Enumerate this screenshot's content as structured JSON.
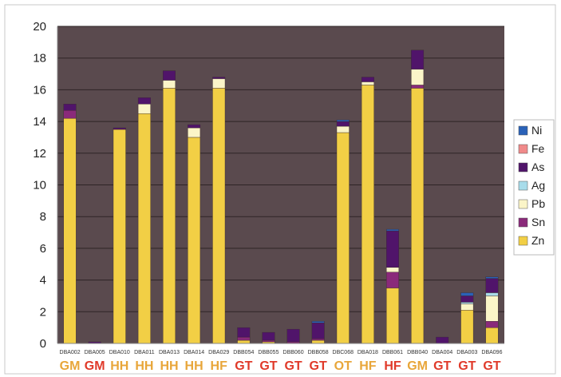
{
  "chart_data": {
    "type": "bar",
    "stacked": true,
    "title": "",
    "xlabel": "",
    "ylabel": "",
    "ylim": [
      0,
      20
    ],
    "yticks": [
      0,
      2,
      4,
      6,
      8,
      10,
      12,
      14,
      16,
      18,
      20
    ],
    "grid": true,
    "legend_position": "right",
    "plot_background": "#5a4a4e",
    "categories": [
      "DBA002",
      "DBA005",
      "DBA010",
      "DBA011",
      "DBA013",
      "DBA014",
      "DBA029",
      "DBB054",
      "DBB055",
      "DBB060",
      "DBB058",
      "DBC068",
      "DBA018",
      "DBB061",
      "DBB040",
      "DBA004",
      "DBA003",
      "DBA096"
    ],
    "groups": [
      "GM",
      "GM",
      "HH",
      "HH",
      "HH",
      "HH",
      "HF",
      "GT",
      "GT",
      "GT",
      "GT",
      "OT",
      "HF",
      "HF",
      "GM",
      "GT",
      "GT",
      "GT"
    ],
    "group_colors": [
      "#e8a63a",
      "#e03a2a",
      "#e8a63a",
      "#e8a63a",
      "#e8a63a",
      "#e8a63a",
      "#e8a63a",
      "#e03a2a",
      "#e03a2a",
      "#e03a2a",
      "#e03a2a",
      "#e8a63a",
      "#e8a63a",
      "#e03a2a",
      "#e8a63a",
      "#e03a2a",
      "#e03a2a",
      "#e03a2a"
    ],
    "series": [
      {
        "name": "Zn",
        "color": "#f2cf45",
        "values": [
          14.2,
          0.0,
          13.5,
          14.5,
          16.1,
          13.0,
          16.1,
          0.2,
          0.1,
          0.0,
          0.2,
          13.3,
          16.3,
          3.5,
          16.1,
          0.0,
          2.1,
          1.0
        ]
      },
      {
        "name": "Sn",
        "color": "#8a2a7a",
        "values": [
          0.5,
          0.0,
          0.0,
          0.0,
          0.0,
          0.0,
          0.0,
          0.2,
          0.1,
          0.1,
          0.1,
          0.0,
          0.0,
          1.0,
          0.2,
          0.0,
          0.0,
          0.4
        ]
      },
      {
        "name": "Pb",
        "color": "#fbf5c8",
        "values": [
          0.0,
          0.0,
          0.0,
          0.6,
          0.5,
          0.6,
          0.6,
          0.0,
          0.0,
          0.0,
          0.0,
          0.4,
          0.2,
          0.3,
          1.0,
          0.0,
          0.4,
          1.6
        ]
      },
      {
        "name": "Ag",
        "color": "#a8dcea",
        "values": [
          0.0,
          0.0,
          0.0,
          0.0,
          0.0,
          0.0,
          0.0,
          0.0,
          0.0,
          0.0,
          0.0,
          0.0,
          0.0,
          0.0,
          0.0,
          0.0,
          0.1,
          0.2
        ]
      },
      {
        "name": "As",
        "color": "#50146a",
        "values": [
          0.4,
          0.1,
          0.1,
          0.4,
          0.6,
          0.2,
          0.1,
          0.6,
          0.5,
          0.8,
          1.0,
          0.3,
          0.3,
          2.3,
          1.2,
          0.4,
          0.4,
          0.9
        ]
      },
      {
        "name": "Fe",
        "color": "#f08a8a",
        "values": [
          0.0,
          0.0,
          0.0,
          0.0,
          0.0,
          0.0,
          0.0,
          0.0,
          0.0,
          0.0,
          0.0,
          0.0,
          0.0,
          0.0,
          0.0,
          0.0,
          0.0,
          0.0
        ]
      },
      {
        "name": "Ni",
        "color": "#2a62b8",
        "values": [
          0.0,
          0.0,
          0.0,
          0.0,
          0.0,
          0.0,
          0.0,
          0.0,
          0.0,
          0.0,
          0.1,
          0.1,
          0.0,
          0.1,
          0.0,
          0.0,
          0.2,
          0.1
        ]
      }
    ],
    "legend_order": [
      "Ni",
      "Fe",
      "As",
      "Ag",
      "Pb",
      "Sn",
      "Zn"
    ]
  }
}
